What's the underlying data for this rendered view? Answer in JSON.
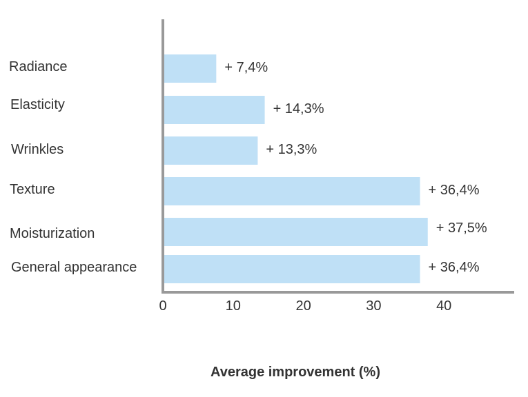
{
  "chart_data": {
    "type": "bar",
    "orientation": "horizontal",
    "categories": [
      "Radiance",
      "Elasticity",
      "Wrinkles",
      "Texture",
      "Moisturization",
      "General appearance"
    ],
    "values": [
      7.4,
      14.3,
      13.3,
      36.4,
      37.5,
      36.4
    ],
    "value_labels": [
      "+ 7,4%",
      "+ 14,3%",
      "+ 13,3%",
      "+ 36,4%",
      "+ 37,5%",
      "+ 36,4%"
    ],
    "xticks": [
      0,
      10,
      20,
      30,
      40
    ],
    "xlim": [
      0,
      50
    ],
    "xlabel": "Average improvement (%)",
    "ylabel": "",
    "title": "",
    "grid": false,
    "legend": "none",
    "bar_color": "#bfe0f6",
    "axis_color": "#999999",
    "text_color": "#333333"
  }
}
